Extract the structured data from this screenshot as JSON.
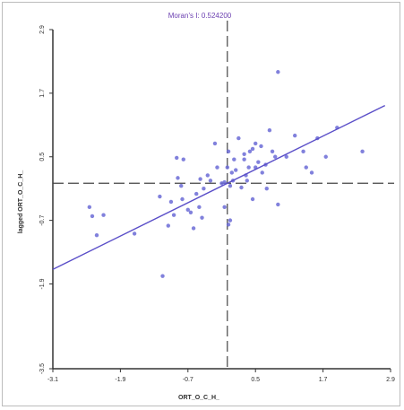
{
  "chart_data": {
    "type": "scatter",
    "title": "Moran's I: 0.524200",
    "xlabel": "ORT_O_C_H_",
    "ylabel": "lagged ORT_O_C_H_",
    "xlim": [
      -3.1,
      2.9
    ],
    "ylim": [
      -3.5,
      2.9
    ],
    "x_ticks": [
      "-3.1",
      "-1.9",
      "-0.7",
      "0.5",
      "1.7",
      "2.9"
    ],
    "y_ticks": [
      "2.9",
      "1.7",
      "0.5",
      "-0.7",
      "-1.9",
      "-3.5"
    ],
    "x_tick_values": [
      -3.1,
      -1.9,
      -0.7,
      0.5,
      1.7,
      2.9
    ],
    "y_tick_values": [
      2.9,
      1.7,
      0.5,
      -0.7,
      -1.9,
      -3.5
    ],
    "mean_x": 0.0,
    "mean_y": 0.0,
    "regression": {
      "slope": 0.5242,
      "intercept": 0.0
    },
    "grid": false,
    "colors": {
      "points": "#6b6bd6",
      "line": "#5a4ec8",
      "axes": "#333333",
      "guides": "#444444",
      "title": "#6a3fb0"
    },
    "points": {
      "x": [
        -2.45,
        -2.4,
        -2.32,
        -2.2,
        -1.65,
        -1.2,
        -1.15,
        -1.05,
        -1.0,
        -0.95,
        -0.9,
        -0.88,
        -0.82,
        -0.8,
        -0.78,
        -0.7,
        -0.65,
        -0.6,
        -0.55,
        -0.5,
        -0.48,
        -0.45,
        -0.42,
        -0.35,
        -0.3,
        -0.22,
        -0.18,
        -0.1,
        -0.05,
        0.0,
        0.02,
        0.05,
        0.08,
        0.1,
        0.12,
        0.15,
        0.2,
        0.25,
        0.3,
        0.33,
        0.38,
        0.4,
        0.45,
        0.5,
        0.55,
        0.6,
        0.62,
        0.68,
        0.7,
        0.75,
        0.8,
        0.85,
        0.9,
        1.05,
        1.2,
        1.35,
        1.4,
        1.5,
        1.6,
        1.75,
        1.95,
        2.4,
        0.05,
        0.02,
        -0.05,
        0.45,
        0.3,
        0.9,
        0.5,
        0.35
      ],
      "y": [
        -0.45,
        -0.62,
        -0.98,
        -0.6,
        -0.95,
        -0.25,
        -1.75,
        -0.8,
        -0.35,
        -0.6,
        0.48,
        0.1,
        -0.05,
        -0.3,
        0.45,
        -0.5,
        -0.55,
        -0.85,
        -0.2,
        -0.45,
        0.08,
        -0.65,
        -0.1,
        0.15,
        0.05,
        0.75,
        0.3,
        0.0,
        0.02,
        0.3,
        0.6,
        -0.05,
        0.2,
        0.05,
        0.45,
        0.25,
        0.85,
        -0.08,
        0.45,
        0.15,
        0.3,
        0.6,
        0.65,
        0.3,
        0.4,
        0.7,
        0.2,
        0.35,
        -0.1,
        1.0,
        0.6,
        0.5,
        2.1,
        0.5,
        0.9,
        0.6,
        0.3,
        0.2,
        0.85,
        0.5,
        1.05,
        0.6,
        -0.7,
        -0.78,
        -0.45,
        -0.3,
        0.55,
        -0.4,
        0.75,
        0.05
      ]
    }
  }
}
